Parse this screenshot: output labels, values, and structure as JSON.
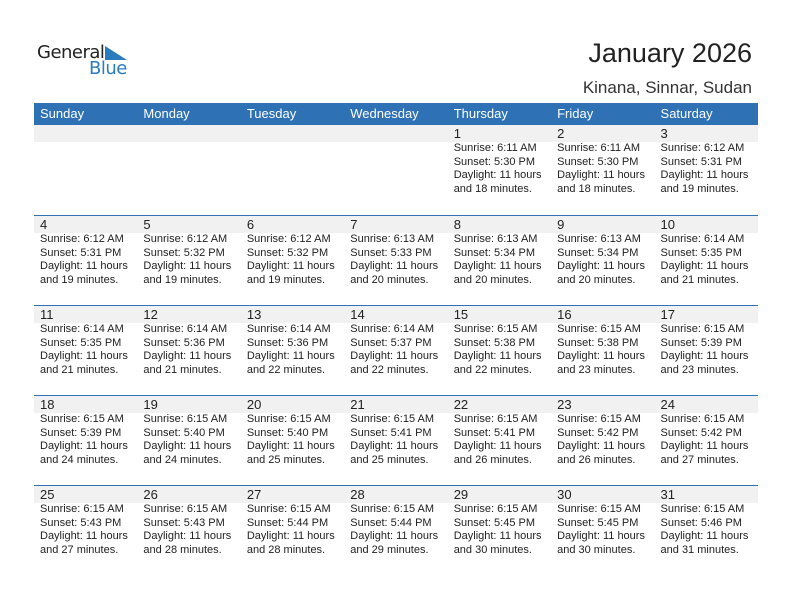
{
  "logo": {
    "line1": "General",
    "line2": "Blue"
  },
  "header": {
    "title": "January 2026",
    "location": "Kinana, Sinnar, Sudan"
  },
  "weekdays": [
    "Sunday",
    "Monday",
    "Tuesday",
    "Wednesday",
    "Thursday",
    "Friday",
    "Saturday"
  ],
  "colors": {
    "accent": "#2e71b4",
    "strip": "#f1f1f1"
  },
  "weeks": [
    [
      null,
      null,
      null,
      null,
      {
        "day": "1",
        "sunrise": "Sunrise: 6:11 AM",
        "sunset": "Sunset: 5:30 PM",
        "daylight1": "Daylight: 11 hours",
        "daylight2": "and 18 minutes."
      },
      {
        "day": "2",
        "sunrise": "Sunrise: 6:11 AM",
        "sunset": "Sunset: 5:30 PM",
        "daylight1": "Daylight: 11 hours",
        "daylight2": "and 18 minutes."
      },
      {
        "day": "3",
        "sunrise": "Sunrise: 6:12 AM",
        "sunset": "Sunset: 5:31 PM",
        "daylight1": "Daylight: 11 hours",
        "daylight2": "and 19 minutes."
      }
    ],
    [
      {
        "day": "4",
        "sunrise": "Sunrise: 6:12 AM",
        "sunset": "Sunset: 5:31 PM",
        "daylight1": "Daylight: 11 hours",
        "daylight2": "and 19 minutes."
      },
      {
        "day": "5",
        "sunrise": "Sunrise: 6:12 AM",
        "sunset": "Sunset: 5:32 PM",
        "daylight1": "Daylight: 11 hours",
        "daylight2": "and 19 minutes."
      },
      {
        "day": "6",
        "sunrise": "Sunrise: 6:12 AM",
        "sunset": "Sunset: 5:32 PM",
        "daylight1": "Daylight: 11 hours",
        "daylight2": "and 19 minutes."
      },
      {
        "day": "7",
        "sunrise": "Sunrise: 6:13 AM",
        "sunset": "Sunset: 5:33 PM",
        "daylight1": "Daylight: 11 hours",
        "daylight2": "and 20 minutes."
      },
      {
        "day": "8",
        "sunrise": "Sunrise: 6:13 AM",
        "sunset": "Sunset: 5:34 PM",
        "daylight1": "Daylight: 11 hours",
        "daylight2": "and 20 minutes."
      },
      {
        "day": "9",
        "sunrise": "Sunrise: 6:13 AM",
        "sunset": "Sunset: 5:34 PM",
        "daylight1": "Daylight: 11 hours",
        "daylight2": "and 20 minutes."
      },
      {
        "day": "10",
        "sunrise": "Sunrise: 6:14 AM",
        "sunset": "Sunset: 5:35 PM",
        "daylight1": "Daylight: 11 hours",
        "daylight2": "and 21 minutes."
      }
    ],
    [
      {
        "day": "11",
        "sunrise": "Sunrise: 6:14 AM",
        "sunset": "Sunset: 5:35 PM",
        "daylight1": "Daylight: 11 hours",
        "daylight2": "and 21 minutes."
      },
      {
        "day": "12",
        "sunrise": "Sunrise: 6:14 AM",
        "sunset": "Sunset: 5:36 PM",
        "daylight1": "Daylight: 11 hours",
        "daylight2": "and 21 minutes."
      },
      {
        "day": "13",
        "sunrise": "Sunrise: 6:14 AM",
        "sunset": "Sunset: 5:36 PM",
        "daylight1": "Daylight: 11 hours",
        "daylight2": "and 22 minutes."
      },
      {
        "day": "14",
        "sunrise": "Sunrise: 6:14 AM",
        "sunset": "Sunset: 5:37 PM",
        "daylight1": "Daylight: 11 hours",
        "daylight2": "and 22 minutes."
      },
      {
        "day": "15",
        "sunrise": "Sunrise: 6:15 AM",
        "sunset": "Sunset: 5:38 PM",
        "daylight1": "Daylight: 11 hours",
        "daylight2": "and 22 minutes."
      },
      {
        "day": "16",
        "sunrise": "Sunrise: 6:15 AM",
        "sunset": "Sunset: 5:38 PM",
        "daylight1": "Daylight: 11 hours",
        "daylight2": "and 23 minutes."
      },
      {
        "day": "17",
        "sunrise": "Sunrise: 6:15 AM",
        "sunset": "Sunset: 5:39 PM",
        "daylight1": "Daylight: 11 hours",
        "daylight2": "and 23 minutes."
      }
    ],
    [
      {
        "day": "18",
        "sunrise": "Sunrise: 6:15 AM",
        "sunset": "Sunset: 5:39 PM",
        "daylight1": "Daylight: 11 hours",
        "daylight2": "and 24 minutes."
      },
      {
        "day": "19",
        "sunrise": "Sunrise: 6:15 AM",
        "sunset": "Sunset: 5:40 PM",
        "daylight1": "Daylight: 11 hours",
        "daylight2": "and 24 minutes."
      },
      {
        "day": "20",
        "sunrise": "Sunrise: 6:15 AM",
        "sunset": "Sunset: 5:40 PM",
        "daylight1": "Daylight: 11 hours",
        "daylight2": "and 25 minutes."
      },
      {
        "day": "21",
        "sunrise": "Sunrise: 6:15 AM",
        "sunset": "Sunset: 5:41 PM",
        "daylight1": "Daylight: 11 hours",
        "daylight2": "and 25 minutes."
      },
      {
        "day": "22",
        "sunrise": "Sunrise: 6:15 AM",
        "sunset": "Sunset: 5:41 PM",
        "daylight1": "Daylight: 11 hours",
        "daylight2": "and 26 minutes."
      },
      {
        "day": "23",
        "sunrise": "Sunrise: 6:15 AM",
        "sunset": "Sunset: 5:42 PM",
        "daylight1": "Daylight: 11 hours",
        "daylight2": "and 26 minutes."
      },
      {
        "day": "24",
        "sunrise": "Sunrise: 6:15 AM",
        "sunset": "Sunset: 5:42 PM",
        "daylight1": "Daylight: 11 hours",
        "daylight2": "and 27 minutes."
      }
    ],
    [
      {
        "day": "25",
        "sunrise": "Sunrise: 6:15 AM",
        "sunset": "Sunset: 5:43 PM",
        "daylight1": "Daylight: 11 hours",
        "daylight2": "and 27 minutes."
      },
      {
        "day": "26",
        "sunrise": "Sunrise: 6:15 AM",
        "sunset": "Sunset: 5:43 PM",
        "daylight1": "Daylight: 11 hours",
        "daylight2": "and 28 minutes."
      },
      {
        "day": "27",
        "sunrise": "Sunrise: 6:15 AM",
        "sunset": "Sunset: 5:44 PM",
        "daylight1": "Daylight: 11 hours",
        "daylight2": "and 28 minutes."
      },
      {
        "day": "28",
        "sunrise": "Sunrise: 6:15 AM",
        "sunset": "Sunset: 5:44 PM",
        "daylight1": "Daylight: 11 hours",
        "daylight2": "and 29 minutes."
      },
      {
        "day": "29",
        "sunrise": "Sunrise: 6:15 AM",
        "sunset": "Sunset: 5:45 PM",
        "daylight1": "Daylight: 11 hours",
        "daylight2": "and 30 minutes."
      },
      {
        "day": "30",
        "sunrise": "Sunrise: 6:15 AM",
        "sunset": "Sunset: 5:45 PM",
        "daylight1": "Daylight: 11 hours",
        "daylight2": "and 30 minutes."
      },
      {
        "day": "31",
        "sunrise": "Sunrise: 6:15 AM",
        "sunset": "Sunset: 5:46 PM",
        "daylight1": "Daylight: 11 hours",
        "daylight2": "and 31 minutes."
      }
    ]
  ]
}
